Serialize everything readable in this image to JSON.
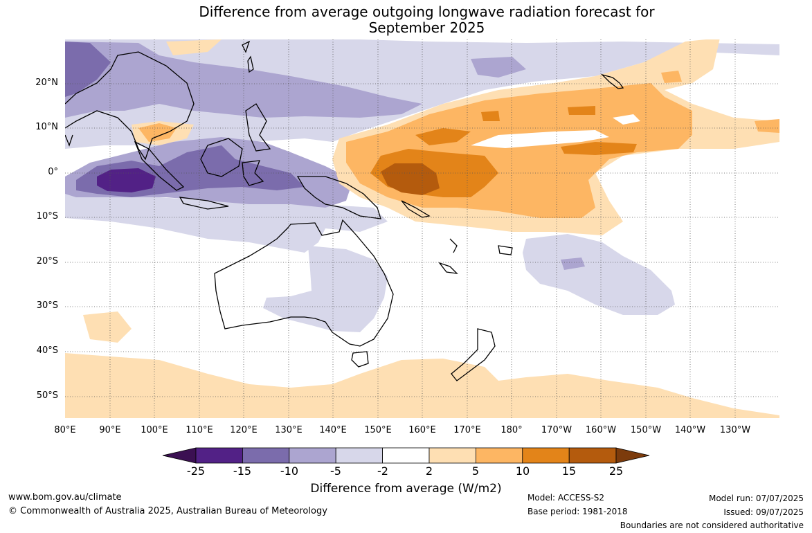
{
  "title_line1": "Difference from average outgoing longwave radiation forecast for",
  "title_line2": "September 2025",
  "lat_labels": [
    "20°N",
    "10°N",
    "0°",
    "10°S",
    "20°S",
    "30°S",
    "40°S",
    "50°S"
  ],
  "lon_labels": [
    "80°E",
    "90°E",
    "100°E",
    "110°E",
    "120°E",
    "130°E",
    "140°E",
    "150°E",
    "160°E",
    "170°E",
    "180°",
    "170°W",
    "160°W",
    "150°W",
    "140°W",
    "130°W"
  ],
  "colorbar": {
    "ticks": [
      "-25",
      "-15",
      "-10",
      "-5",
      "-2",
      "2",
      "5",
      "10",
      "15",
      "25"
    ],
    "colors": {
      "lt_-25": "#3b1052",
      "neg_25_15": "#522186",
      "neg_15_10": "#7b6cac",
      "neg_10_5": "#aca5d0",
      "neg_5_2": "#d7d7ea",
      "neutral": "#ffffff",
      "pos_2_5": "#fedfb3",
      "pos_5_10": "#fdb663",
      "pos_10_15": "#e38419",
      "pos_15_25": "#b45b0d",
      "gt_25": "#7c3b0c"
    },
    "title": "Difference from average (W/m2)"
  },
  "footer": {
    "website": "www.bom.gov.au/climate",
    "copyright": "© Commonwealth of Australia 2025, Australian Bureau of Meteorology",
    "model": "Model: ACCESS-S2",
    "base_period": "Base period: 1981-2018",
    "model_run": "Model run: 07/07/2025",
    "issued": "Issued: 09/07/2025",
    "disclaimer": "Boundaries are not considered authoritative"
  }
}
